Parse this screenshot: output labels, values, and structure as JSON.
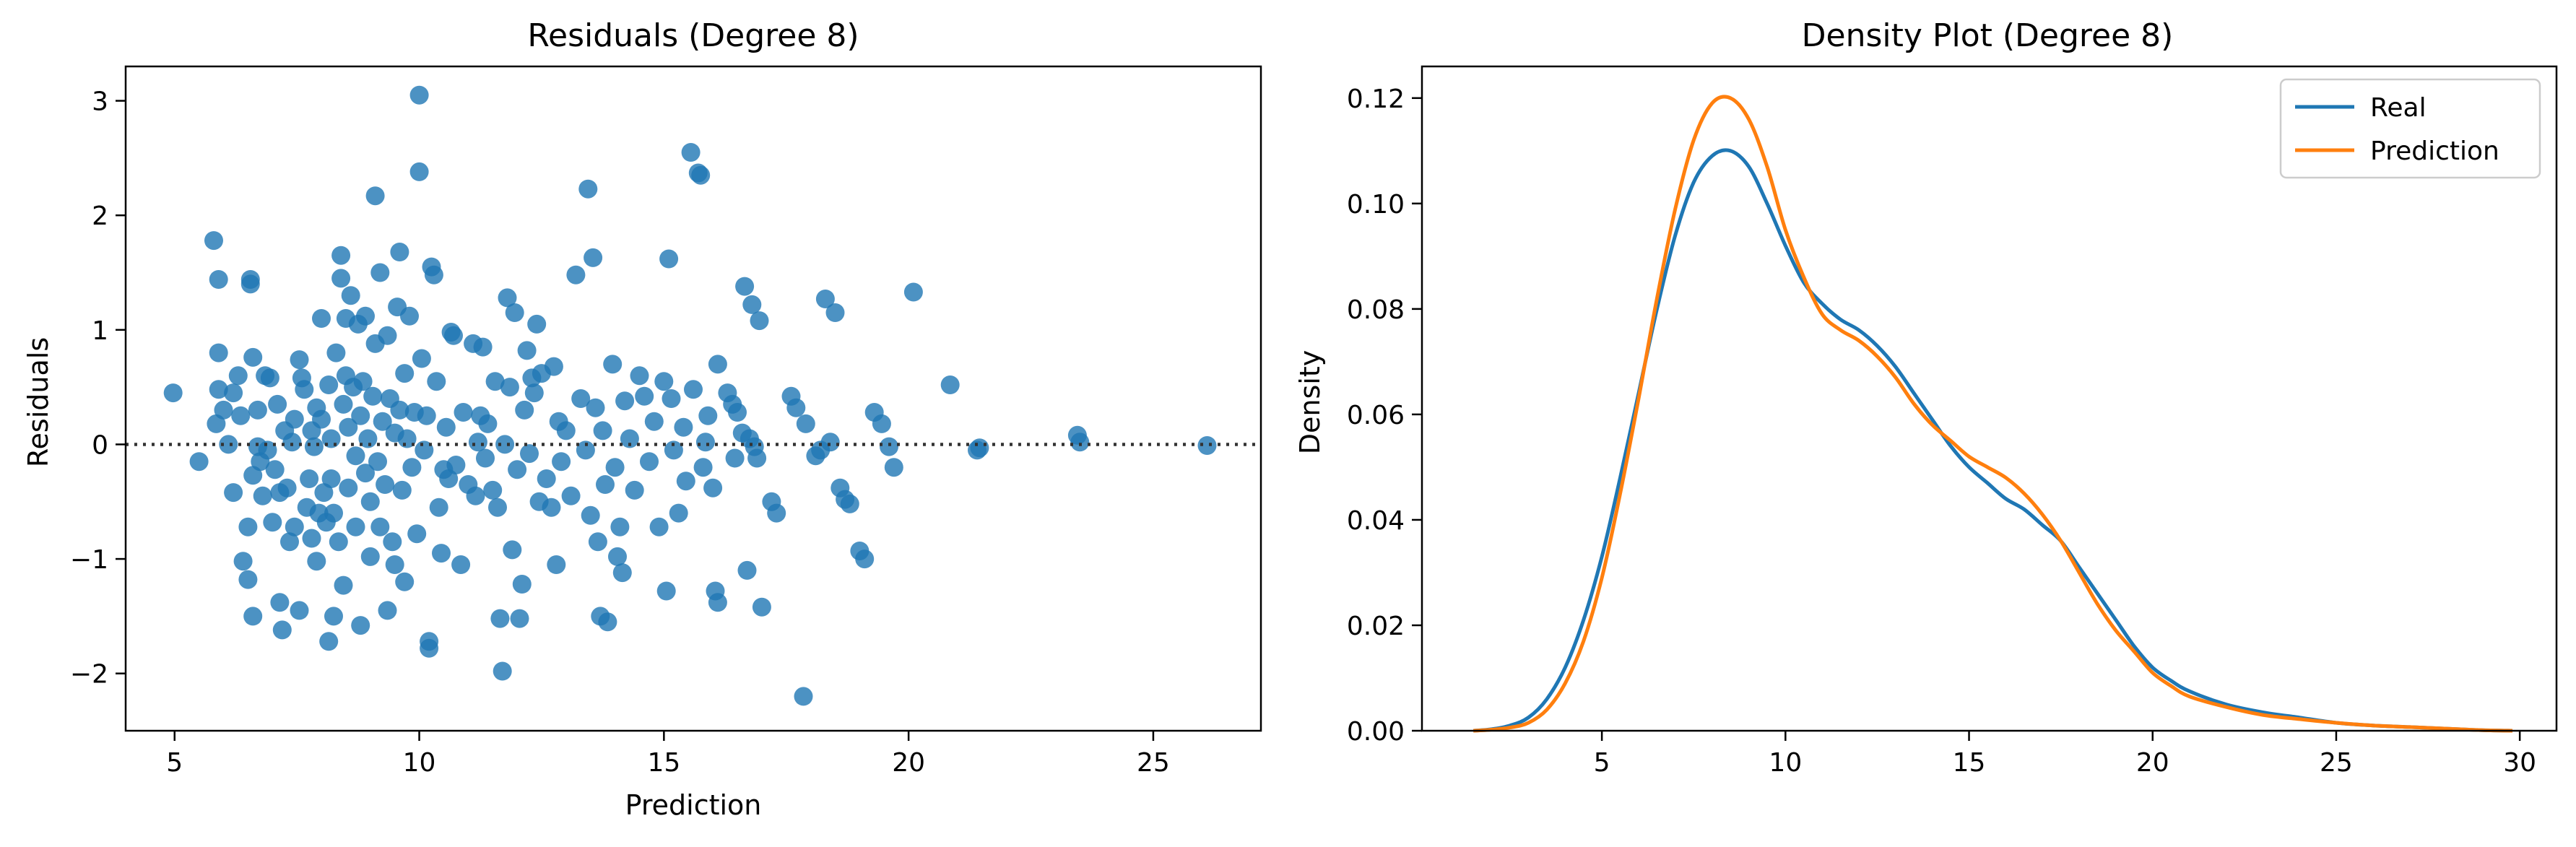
{
  "chart_data": [
    {
      "type": "scatter",
      "title": "Residuals (Degree 8)",
      "xlabel": "Prediction",
      "ylabel": "Residuals",
      "xlim": [
        4,
        27.2
      ],
      "ylim": [
        -2.5,
        3.3
      ],
      "xticks": [
        5,
        10,
        15,
        20,
        25
      ],
      "yticks": [
        -2,
        -1,
        0,
        1,
        2,
        3
      ],
      "xtick_labels": [
        "5",
        "10",
        "15",
        "20",
        "25"
      ],
      "ytick_labels": [
        "−2",
        "−1",
        "0",
        "1",
        "2",
        "3"
      ],
      "reference_line": {
        "y": 0,
        "style": "dotted",
        "color": "#333333"
      },
      "grid": false,
      "marker_color": "#1f77b4",
      "points": [
        [
          4.97,
          0.45
        ],
        [
          5.5,
          -0.15
        ],
        [
          5.8,
          1.78
        ],
        [
          5.9,
          1.44
        ],
        [
          5.9,
          0.8
        ],
        [
          5.9,
          0.48
        ],
        [
          5.85,
          0.18
        ],
        [
          6.0,
          0.3
        ],
        [
          6.1,
          0.0
        ],
        [
          6.2,
          0.45
        ],
        [
          6.2,
          -0.42
        ],
        [
          6.3,
          0.6
        ],
        [
          6.35,
          0.25
        ],
        [
          6.4,
          -1.02
        ],
        [
          6.5,
          -1.18
        ],
        [
          6.5,
          -0.72
        ],
        [
          6.55,
          1.44
        ],
        [
          6.55,
          1.4
        ],
        [
          6.6,
          0.76
        ],
        [
          6.6,
          -0.27
        ],
        [
          6.6,
          -1.5
        ],
        [
          6.7,
          0.3
        ],
        [
          6.7,
          -0.02
        ],
        [
          6.75,
          -0.15
        ],
        [
          6.8,
          -0.45
        ],
        [
          6.85,
          0.6
        ],
        [
          6.9,
          -0.05
        ],
        [
          6.95,
          0.58
        ],
        [
          7.0,
          -0.68
        ],
        [
          7.05,
          -0.22
        ],
        [
          7.1,
          0.35
        ],
        [
          7.15,
          -0.42
        ],
        [
          7.15,
          -1.38
        ],
        [
          7.2,
          -1.62
        ],
        [
          7.25,
          0.12
        ],
        [
          7.3,
          -0.38
        ],
        [
          7.35,
          -0.85
        ],
        [
          7.4,
          0.02
        ],
        [
          7.45,
          0.22
        ],
        [
          7.45,
          -0.72
        ],
        [
          7.55,
          0.74
        ],
        [
          7.55,
          -1.45
        ],
        [
          7.6,
          0.58
        ],
        [
          7.65,
          0.48
        ],
        [
          7.7,
          -0.55
        ],
        [
          7.75,
          -0.3
        ],
        [
          7.8,
          0.12
        ],
        [
          7.8,
          -0.82
        ],
        [
          7.85,
          -0.02
        ],
        [
          7.9,
          0.32
        ],
        [
          7.9,
          -1.02
        ],
        [
          7.95,
          -0.6
        ],
        [
          8.0,
          1.1
        ],
        [
          8.0,
          0.22
        ],
        [
          8.05,
          -0.42
        ],
        [
          8.1,
          -0.68
        ],
        [
          8.15,
          0.52
        ],
        [
          8.15,
          -1.72
        ],
        [
          8.2,
          -0.3
        ],
        [
          8.2,
          0.05
        ],
        [
          8.25,
          -0.6
        ],
        [
          8.25,
          -1.5
        ],
        [
          8.3,
          0.8
        ],
        [
          8.35,
          -0.85
        ],
        [
          8.4,
          1.65
        ],
        [
          8.4,
          1.45
        ],
        [
          8.45,
          0.35
        ],
        [
          8.45,
          -1.23
        ],
        [
          8.5,
          1.1
        ],
        [
          8.5,
          0.6
        ],
        [
          8.55,
          0.15
        ],
        [
          8.55,
          -0.38
        ],
        [
          8.6,
          1.3
        ],
        [
          8.65,
          0.5
        ],
        [
          8.7,
          -0.1
        ],
        [
          8.7,
          -0.72
        ],
        [
          8.75,
          1.05
        ],
        [
          8.8,
          0.25
        ],
        [
          8.8,
          -1.58
        ],
        [
          8.85,
          0.55
        ],
        [
          8.9,
          1.12
        ],
        [
          8.9,
          -0.25
        ],
        [
          8.95,
          0.05
        ],
        [
          9.0,
          -0.5
        ],
        [
          9.0,
          -0.98
        ],
        [
          9.05,
          0.42
        ],
        [
          9.1,
          2.17
        ],
        [
          9.1,
          0.88
        ],
        [
          9.15,
          -0.15
        ],
        [
          9.2,
          1.5
        ],
        [
          9.2,
          -0.72
        ],
        [
          9.25,
          0.2
        ],
        [
          9.3,
          -0.35
        ],
        [
          9.35,
          0.95
        ],
        [
          9.35,
          -1.45
        ],
        [
          9.4,
          0.4
        ],
        [
          9.45,
          -0.85
        ],
        [
          9.5,
          0.1
        ],
        [
          9.5,
          -1.05
        ],
        [
          9.55,
          1.2
        ],
        [
          9.6,
          1.68
        ],
        [
          9.6,
          0.3
        ],
        [
          9.65,
          -0.4
        ],
        [
          9.7,
          0.62
        ],
        [
          9.7,
          -1.2
        ],
        [
          9.75,
          0.05
        ],
        [
          9.8,
          1.12
        ],
        [
          9.85,
          -0.2
        ],
        [
          9.9,
          0.28
        ],
        [
          9.95,
          -0.78
        ],
        [
          10.0,
          3.05
        ],
        [
          10.0,
          2.38
        ],
        [
          10.05,
          0.75
        ],
        [
          10.1,
          -0.05
        ],
        [
          10.15,
          0.25
        ],
        [
          10.2,
          -1.72
        ],
        [
          10.2,
          -1.78
        ],
        [
          10.25,
          1.55
        ],
        [
          10.3,
          1.48
        ],
        [
          10.35,
          0.55
        ],
        [
          10.4,
          -0.55
        ],
        [
          10.45,
          -0.95
        ],
        [
          10.5,
          -0.22
        ],
        [
          10.55,
          0.15
        ],
        [
          10.6,
          -0.3
        ],
        [
          10.65,
          0.98
        ],
        [
          10.7,
          0.95
        ],
        [
          10.75,
          -0.18
        ],
        [
          10.85,
          -1.05
        ],
        [
          10.9,
          0.28
        ],
        [
          11.0,
          -0.35
        ],
        [
          11.1,
          0.88
        ],
        [
          11.15,
          -0.45
        ],
        [
          11.2,
          0.02
        ],
        [
          11.25,
          0.25
        ],
        [
          11.3,
          0.85
        ],
        [
          11.35,
          -0.12
        ],
        [
          11.4,
          0.18
        ],
        [
          11.5,
          -0.4
        ],
        [
          11.55,
          0.55
        ],
        [
          11.6,
          -0.55
        ],
        [
          11.65,
          -1.52
        ],
        [
          11.7,
          -1.98
        ],
        [
          11.75,
          0.0
        ],
        [
          11.8,
          1.28
        ],
        [
          11.85,
          0.5
        ],
        [
          11.9,
          -0.92
        ],
        [
          11.95,
          1.15
        ],
        [
          12.0,
          -0.22
        ],
        [
          12.05,
          -1.52
        ],
        [
          12.1,
          -1.22
        ],
        [
          12.15,
          0.3
        ],
        [
          12.2,
          0.82
        ],
        [
          12.25,
          -0.08
        ],
        [
          12.3,
          0.58
        ],
        [
          12.35,
          0.45
        ],
        [
          12.4,
          1.05
        ],
        [
          12.45,
          -0.5
        ],
        [
          12.5,
          0.62
        ],
        [
          12.6,
          -0.3
        ],
        [
          12.7,
          -0.55
        ],
        [
          12.75,
          0.68
        ],
        [
          12.8,
          -1.05
        ],
        [
          12.85,
          0.2
        ],
        [
          12.9,
          -0.15
        ],
        [
          13.0,
          0.12
        ],
        [
          13.1,
          -0.45
        ],
        [
          13.2,
          1.48
        ],
        [
          13.3,
          0.4
        ],
        [
          13.4,
          -0.05
        ],
        [
          13.45,
          2.23
        ],
        [
          13.5,
          -0.62
        ],
        [
          13.55,
          1.63
        ],
        [
          13.6,
          0.32
        ],
        [
          13.65,
          -0.85
        ],
        [
          13.7,
          -1.5
        ],
        [
          13.75,
          0.12
        ],
        [
          13.8,
          -0.35
        ],
        [
          13.85,
          -1.55
        ],
        [
          13.95,
          0.7
        ],
        [
          14.0,
          -0.2
        ],
        [
          14.05,
          -0.98
        ],
        [
          14.1,
          -0.72
        ],
        [
          14.15,
          -1.12
        ],
        [
          14.2,
          0.38
        ],
        [
          14.3,
          0.05
        ],
        [
          14.4,
          -0.4
        ],
        [
          14.5,
          0.6
        ],
        [
          14.6,
          0.42
        ],
        [
          14.7,
          -0.15
        ],
        [
          14.8,
          0.2
        ],
        [
          14.9,
          -0.72
        ],
        [
          15.0,
          0.55
        ],
        [
          15.05,
          -1.28
        ],
        [
          15.1,
          1.62
        ],
        [
          15.15,
          0.4
        ],
        [
          15.2,
          -0.05
        ],
        [
          15.3,
          -0.6
        ],
        [
          15.4,
          0.15
        ],
        [
          15.45,
          -0.32
        ],
        [
          15.55,
          2.55
        ],
        [
          15.6,
          0.48
        ],
        [
          15.7,
          2.37
        ],
        [
          15.75,
          2.35
        ],
        [
          15.8,
          -0.2
        ],
        [
          15.85,
          0.02
        ],
        [
          15.9,
          0.25
        ],
        [
          16.0,
          -0.38
        ],
        [
          16.05,
          -1.28
        ],
        [
          16.1,
          -1.38
        ],
        [
          16.1,
          0.7
        ],
        [
          16.3,
          0.45
        ],
        [
          16.4,
          0.35
        ],
        [
          16.45,
          -0.12
        ],
        [
          16.5,
          0.28
        ],
        [
          16.6,
          0.1
        ],
        [
          16.65,
          1.38
        ],
        [
          16.7,
          -1.1
        ],
        [
          16.75,
          0.05
        ],
        [
          16.8,
          1.22
        ],
        [
          16.85,
          -0.02
        ],
        [
          16.9,
          -0.12
        ],
        [
          16.95,
          1.08
        ],
        [
          17.0,
          -1.42
        ],
        [
          17.2,
          -0.5
        ],
        [
          17.3,
          -0.6
        ],
        [
          17.6,
          0.42
        ],
        [
          17.7,
          0.32
        ],
        [
          17.85,
          -2.2
        ],
        [
          17.9,
          0.18
        ],
        [
          18.1,
          -0.1
        ],
        [
          18.2,
          -0.05
        ],
        [
          18.3,
          1.27
        ],
        [
          18.4,
          0.02
        ],
        [
          18.5,
          1.15
        ],
        [
          18.6,
          -0.38
        ],
        [
          18.7,
          -0.48
        ],
        [
          18.8,
          -0.52
        ],
        [
          19.0,
          -0.93
        ],
        [
          19.1,
          -1.0
        ],
        [
          19.3,
          0.28
        ],
        [
          19.45,
          0.18
        ],
        [
          19.6,
          -0.02
        ],
        [
          19.7,
          -0.2
        ],
        [
          20.1,
          1.33
        ],
        [
          20.85,
          0.52
        ],
        [
          21.4,
          -0.05
        ],
        [
          21.45,
          -0.03
        ],
        [
          23.45,
          0.08
        ],
        [
          23.5,
          0.02
        ],
        [
          26.1,
          -0.01
        ]
      ]
    },
    {
      "type": "line",
      "title": "Density Plot (Degree 8)",
      "xlabel": "",
      "ylabel": "Density",
      "xlim": [
        0.1,
        31.0
      ],
      "ylim": [
        0,
        0.126
      ],
      "xticks": [
        5,
        10,
        15,
        20,
        25,
        30
      ],
      "yticks": [
        0.0,
        0.02,
        0.04,
        0.06,
        0.08,
        0.1,
        0.12
      ],
      "xtick_labels": [
        "5",
        "10",
        "15",
        "20",
        "25",
        "30"
      ],
      "ytick_labels": [
        "0.00",
        "0.02",
        "0.04",
        "0.06",
        "0.08",
        "0.10",
        "0.12"
      ],
      "legend_position": "top-right",
      "grid": false,
      "series": [
        {
          "name": "Real",
          "color": "#1f77b4",
          "x": [
            1.5,
            2,
            2.5,
            3,
            3.5,
            4,
            4.5,
            5,
            5.5,
            6,
            6.5,
            7,
            7.5,
            8,
            8.5,
            9,
            9.5,
            10,
            10.5,
            11,
            11.5,
            12,
            12.5,
            13,
            13.5,
            14,
            14.5,
            15,
            15.5,
            16,
            16.5,
            17,
            17.5,
            18,
            18.5,
            19,
            19.5,
            20,
            20.5,
            21,
            22,
            23,
            24,
            25,
            26,
            27,
            28,
            29,
            29.8
          ],
          "y": [
            0.0,
            0.0003,
            0.001,
            0.0025,
            0.006,
            0.012,
            0.021,
            0.033,
            0.048,
            0.064,
            0.08,
            0.094,
            0.104,
            0.109,
            0.11,
            0.107,
            0.1,
            0.092,
            0.085,
            0.081,
            0.078,
            0.076,
            0.073,
            0.069,
            0.064,
            0.059,
            0.054,
            0.05,
            0.047,
            0.044,
            0.042,
            0.039,
            0.036,
            0.031,
            0.026,
            0.021,
            0.016,
            0.012,
            0.0095,
            0.0075,
            0.005,
            0.0035,
            0.0025,
            0.0015,
            0.001,
            0.0007,
            0.0004,
            0.0001,
            0.0
          ]
        },
        {
          "name": "Prediction",
          "color": "#ff7f0e",
          "x": [
            1.5,
            2,
            2.5,
            3,
            3.5,
            4,
            4.5,
            5,
            5.5,
            6,
            6.5,
            7,
            7.5,
            8,
            8.5,
            9,
            9.5,
            10,
            10.5,
            11,
            11.5,
            12,
            12.5,
            13,
            13.5,
            14,
            14.5,
            15,
            15.5,
            16,
            16.5,
            17,
            17.5,
            18,
            18.5,
            19,
            19.5,
            20,
            20.5,
            21,
            22,
            23,
            24,
            25,
            26,
            27,
            28,
            29,
            29.8
          ],
          "y": [
            0.0,
            0.0002,
            0.0006,
            0.0015,
            0.004,
            0.009,
            0.017,
            0.029,
            0.045,
            0.063,
            0.082,
            0.099,
            0.112,
            0.119,
            0.12,
            0.116,
            0.107,
            0.095,
            0.086,
            0.079,
            0.076,
            0.074,
            0.071,
            0.067,
            0.062,
            0.058,
            0.055,
            0.052,
            0.05,
            0.048,
            0.045,
            0.041,
            0.036,
            0.03,
            0.024,
            0.019,
            0.015,
            0.011,
            0.0085,
            0.0065,
            0.0045,
            0.003,
            0.0022,
            0.0015,
            0.001,
            0.0007,
            0.0004,
            0.0001,
            0.0
          ]
        }
      ]
    }
  ]
}
